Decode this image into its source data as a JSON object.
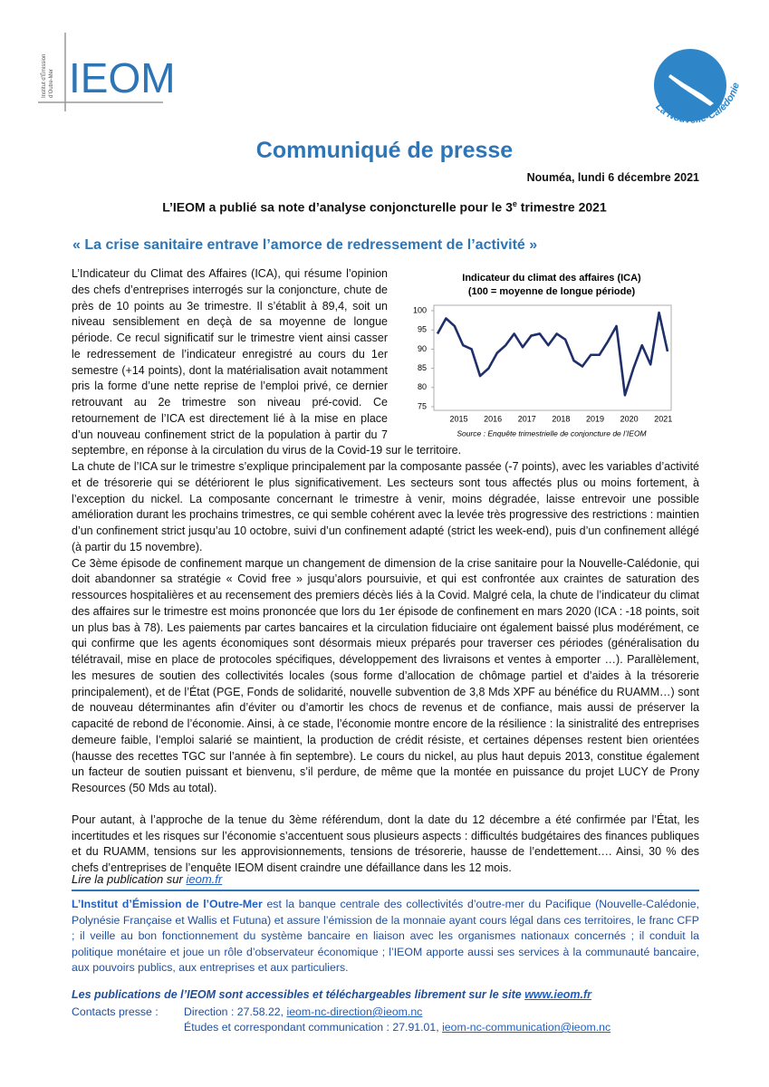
{
  "header": {
    "logo": "IEOM",
    "logo_subtitle": [
      "Institut d’Émission",
      "d’Outre-Mer"
    ],
    "agency_top": "AGENCE DE",
    "agency_bottom": "La Nouvelle-Calédonie"
  },
  "title": "Communiqué de presse",
  "date": "Nouméa, lundi 6 décembre 2021",
  "headline": {
    "before": "L’IEOM a publié sa note d’analyse conjoncturelle pour le 3",
    "sup": "e",
    "after": " trimestre 2021"
  },
  "subtitle": "« La crise sanitaire entrave l’amorce de redressement de l’activité »",
  "chart_data": {
    "type": "line",
    "title": "Indicateur du climat des affaires (ICA)",
    "subtitle": "(100 = moyenne de longue période)",
    "source": "Source : Enquête trimestrielle de conjoncture de l’IEOM",
    "categories": [
      null,
      null,
      "2015",
      null,
      null,
      null,
      "2016",
      null,
      null,
      null,
      "2017",
      null,
      null,
      null,
      "2018",
      null,
      null,
      null,
      "2019",
      null,
      null,
      null,
      "2020",
      null,
      null,
      null,
      "2021",
      null
    ],
    "values": [
      94,
      98,
      96,
      91,
      90,
      83,
      85,
      89,
      91,
      94,
      90.5,
      93.5,
      94,
      91,
      94,
      92.5,
      87,
      85.5,
      88.5,
      88.5,
      92,
      96,
      78,
      85,
      91,
      86,
      99.5,
      89.4
    ],
    "color": "#1f2f6b",
    "ylim": [
      75,
      100
    ],
    "yticks": [
      75,
      80,
      85,
      90,
      95,
      100
    ],
    "grid": false
  },
  "paragraphs": [
    "L’Indicateur du Climat des Affaires (ICA), qui résume l’opinion des chefs d’entreprises interrogés sur la conjoncture, chute de près de 10 points au 3e trimestre. Il s’établit à 89,4, soit un niveau sensiblement en deçà de sa moyenne de longue période. Ce recul significatif sur le trimestre vient ainsi casser le redressement de l’indicateur enregistré au cours du 1er semestre (+14 points), dont la matérialisation avait notamment pris la forme d’une nette reprise de l’emploi privé, ce dernier retrouvant au 2e trimestre son niveau pré-covid. Ce retournement de l’ICA est directement lié à la mise en place d’un nouveau confinement strict de la population à partir du 7 septembre, en réponse à la circulation du virus de la Covid-19 sur le territoire.",
    "La chute de l’ICA sur le trimestre s’explique principalement par la composante passée (-7 points), avec les variables d’activité et de trésorerie qui se détériorent le plus significativement. Les secteurs sont tous affectés plus ou moins fortement, à l’exception du nickel. La composante concernant le trimestre à venir, moins dégradée, laisse entrevoir une possible amélioration durant les prochains trimestres, ce qui semble cohérent avec la levée très progressive des restrictions : maintien d’un confinement strict jusqu’au 10 octobre, suivi d’un confinement adapté (strict les week-end), puis d’un confinement allégé (à partir du 15 novembre).",
    "Ce 3ème épisode de confinement  marque un changement de dimension de la crise sanitaire pour la Nouvelle-Calédonie, qui doit abandonner sa stratégie « Covid free »  jusqu’alors poursuivie, et qui est confrontée aux craintes de saturation des ressources hospitalières et au recensement des premiers décès liés à la Covid. Malgré cela, la chute de l’indicateur du climat des affaires sur le trimestre est moins prononcée que lors du 1er épisode de confinement en mars 2020 (ICA : -18 points, soit un plus bas à 78). Les paiements par cartes bancaires et la circulation fiduciaire ont également baissé plus modérément, ce qui confirme que les agents économiques sont désormais mieux préparés pour traverser ces périodes (généralisation du télétravail, mise en place de protocoles spécifiques, développement des livraisons et ventes à emporter …). Parallèlement, les mesures de soutien des collectivités locales (sous forme d’allocation de chômage partiel et d’aides à la trésorerie principalement), et de l’État (PGE, Fonds de solidarité, nouvelle subvention de 3,8 Mds XPF au bénéfice du RUAMM…) sont de nouveau déterminantes afin d’éviter ou d’amortir les chocs de revenus et de confiance, mais aussi de préserver la capacité de rebond de l’économie. Ainsi, à ce stade, l’économie montre encore de la résilience : la sinistralité des entreprises demeure faible, l’emploi salarié se maintient, la production de crédit résiste, et certaines dépenses restent bien orientées (hausse des recettes TGC sur l’année à fin septembre). Le cours du nickel, au plus haut depuis 2013, constitue également un facteur de soutien puissant et bienvenu, s’il perdure, de même que la montée en puissance du projet LUCY de Prony Resources (50 Mds au total).",
    "Pour autant, à l’approche de la tenue du 3ème référendum, dont la date du 12 décembre a été confirmée par l’État, les incertitudes et les risques sur l’économie s’accentuent sous plusieurs aspects : difficultés budgétaires des finances publiques et du RUAMM, tensions sur les approvisionnements, tensions de trésorerie, hausse de l’endettement…. Ainsi, 30 % des chefs d’entreprises de l’enquête IEOM disent craindre une défaillance dans les 12 mois."
  ],
  "more": {
    "text": "Lire la publication sur ",
    "link": "ieom.fr"
  },
  "footer": {
    "org": "L’Institut d’Émission de l’Outre-Mer",
    "description": " est la banque centrale des collectivités d’outre-mer du Pacifique (Nouvelle-Calédonie, Polynésie Française et Wallis et Futuna) et assure l’émission de la monnaie ayant cours légal dans ces territoires, le franc CFP ; il veille au bon fonctionnement du système bancaire en liaison avec les organismes nationaux concernés ; il conduit la politique monétaire et joue un rôle d’observateur économique ; l’IEOM apporte aussi ses services à la communauté bancaire, aux pouvoirs publics, aux entreprises et aux particuliers."
  },
  "publications": {
    "text": "Les publications de l’IEOM sont accessibles et téléchargeables librement sur le site ",
    "link": "www.ieom.fr"
  },
  "contacts": {
    "label": "Contacts presse :",
    "lines": [
      {
        "text": "Direction : 27.58.22, ",
        "email": "ieom-nc-direction@ieom.nc"
      },
      {
        "text": "Études et correspondant communication : 27.91.01, ",
        "email": "ieom-nc-communication@ieom.nc"
      }
    ]
  }
}
